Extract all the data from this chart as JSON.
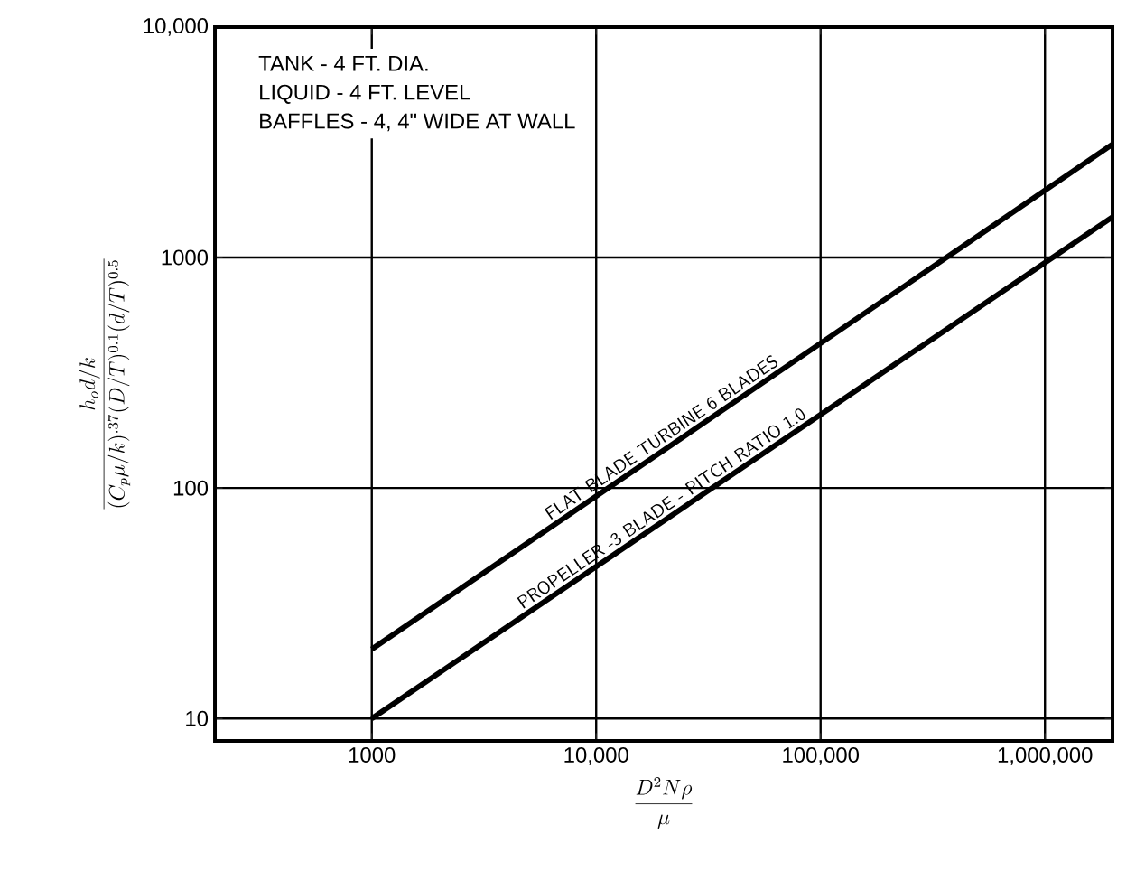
{
  "chart_data": {
    "type": "line",
    "x": [
      1000,
      2000000
    ],
    "series": [
      {
        "name": "FLAT BLADE TURBINE   6 BLADES",
        "color": "#000000",
        "values": [
          20,
          3100
        ]
      },
      {
        "name": "PROPELLER -3 BLADE - PITCH RATIO 1.0",
        "color": "#000000",
        "values": [
          10,
          1500
        ]
      }
    ],
    "xlabel": "\\frac{D^{2}N\\rho}{\\mu}",
    "ylabel": "\\frac{h_{o}d/k}{(C_{p}\\mu/k)^{.37}(D/T)^{0.1}(d/T)^{0.5}}",
    "annotations": [
      "TANK - 4 FT. DIA.",
      "LIQUID - 4 FT. LEVEL",
      "BAFFLES - 4, 4\" WIDE AT WALL"
    ],
    "log": "xy",
    "xlim": [
      200,
      2000000
    ],
    "ylim": [
      8,
      10000
    ],
    "xticks": [
      1000,
      {
        "value": 10000,
        "label": "10,000"
      },
      {
        "value": 100000,
        "label": "100,000"
      },
      {
        "value": 1000000,
        "label": "1,000,000"
      }
    ],
    "yticks": [
      10,
      100,
      1000,
      {
        "value": 10000,
        "label": "10,000"
      }
    ],
    "grid": true,
    "marker": "none",
    "line_style": "solid"
  }
}
